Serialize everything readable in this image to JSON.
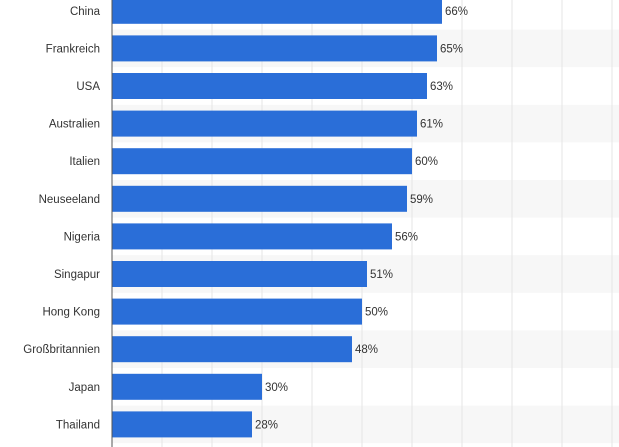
{
  "chart_data": {
    "type": "bar",
    "orientation": "horizontal",
    "categories": [
      "China",
      "Frankreich",
      "USA",
      "Australien",
      "Italien",
      "Neuseeland",
      "Nigeria",
      "Singapur",
      "Hong Kong",
      "Großbritannien",
      "Japan",
      "Thailand"
    ],
    "values": [
      66,
      65,
      63,
      61,
      60,
      59,
      56,
      51,
      50,
      48,
      30,
      28
    ],
    "value_labels": [
      "66%",
      "65%",
      "63%",
      "61%",
      "60%",
      "59%",
      "56%",
      "51%",
      "50%",
      "48%",
      "30%",
      "28%"
    ],
    "xlim": [
      0,
      100
    ],
    "grid": true,
    "bar_color": "#2a6ed8",
    "stripe_color": "#f7f7f7",
    "grid_color": "#e6e6e6",
    "axis_color": "#555555"
  }
}
